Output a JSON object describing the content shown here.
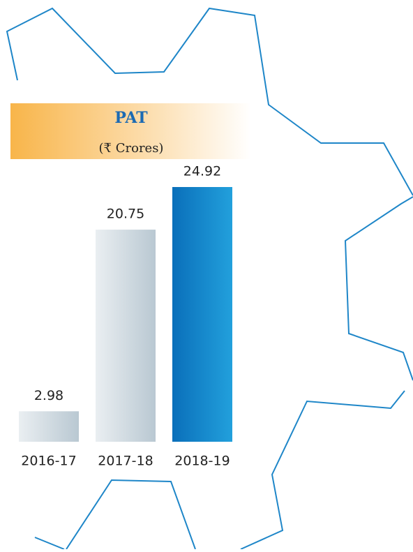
{
  "chart_data": {
    "type": "bar",
    "title": "PAT",
    "subtitle": "(₹ Crores)",
    "categories": [
      "2016-17",
      "2017-18",
      "2018-19"
    ],
    "values": [
      2.98,
      20.75,
      24.92
    ],
    "colors": [
      "#b9c8d2",
      "#b9c8d2",
      "#0a6fba"
    ]
  }
}
